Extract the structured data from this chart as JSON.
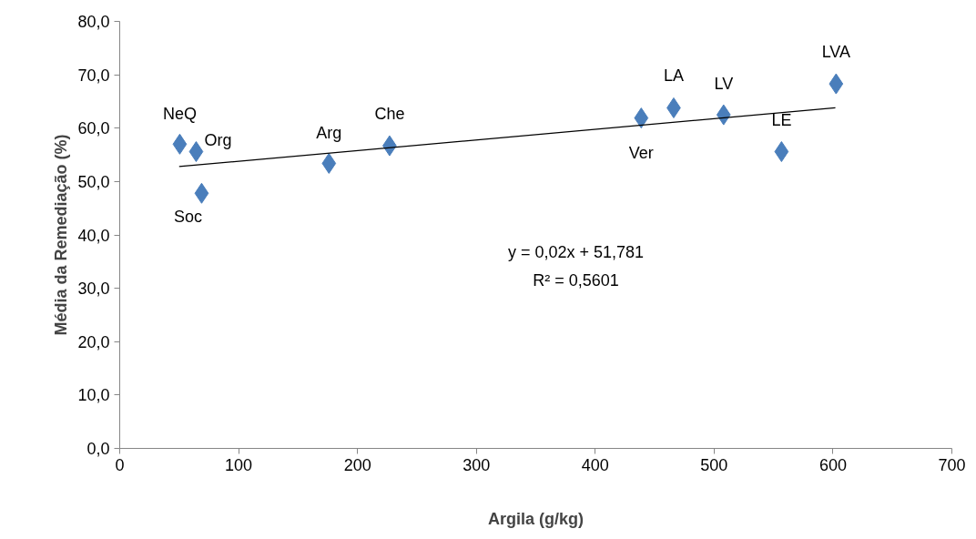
{
  "chart_data": {
    "type": "scatter",
    "xlabel": "Argila (g/kg)",
    "ylabel": "Média da Remediação (%)",
    "xlim": [
      0,
      700
    ],
    "xticks": [
      0,
      100,
      200,
      300,
      400,
      500,
      600,
      700
    ],
    "ylim": [
      0,
      80
    ],
    "yticks": [
      {
        "value": 0,
        "label": "0,0"
      },
      {
        "value": 10,
        "label": "10,0"
      },
      {
        "value": 20,
        "label": "20,0"
      },
      {
        "value": 30,
        "label": "30,0"
      },
      {
        "value": 40,
        "label": "40,0"
      },
      {
        "value": 50,
        "label": "50,0"
      },
      {
        "value": 60,
        "label": "60,0"
      },
      {
        "value": 70,
        "label": "70,0"
      },
      {
        "value": 80,
        "label": "80,0"
      }
    ],
    "grid": false,
    "marker": "diamond",
    "series": [
      {
        "color": "#4a7ebb",
        "x": [
          50.5,
          64.3,
          68.9,
          176,
          227,
          438.7,
          466,
          508,
          556.7,
          602.6
        ],
        "values": [
          57.0,
          55.6,
          47.8,
          53.4,
          56.7,
          61.9,
          63.8,
          62.5,
          55.6,
          68.3
        ]
      },
      {
        "type": "line",
        "marker": "none",
        "color": "#000000",
        "x": [
          50,
          602
        ],
        "values": [
          52.8,
          63.8
        ]
      }
    ],
    "annotations": [
      {
        "text": "NeQ",
        "x": 50.5,
        "y": 57.0
      },
      {
        "text": "Org",
        "x": 64.3,
        "y": 55.6
      },
      {
        "text": "Soc",
        "x": 68.9,
        "y": 47.8
      },
      {
        "text": "Arg",
        "x": 176,
        "y": 53.4
      },
      {
        "text": "Che",
        "x": 227,
        "y": 56.7
      },
      {
        "text": "Ver",
        "x": 438.7,
        "y": 61.9
      },
      {
        "text": "LA",
        "x": 466,
        "y": 63.8
      },
      {
        "text": "LV",
        "x": 508,
        "y": 62.5
      },
      {
        "text": "LE",
        "x": 556.7,
        "y": 55.6
      },
      {
        "text": "LVA",
        "x": 602.6,
        "y": 68.3
      },
      "y = 0,02x + 51,781",
      "R² = 0,5601"
    ]
  }
}
